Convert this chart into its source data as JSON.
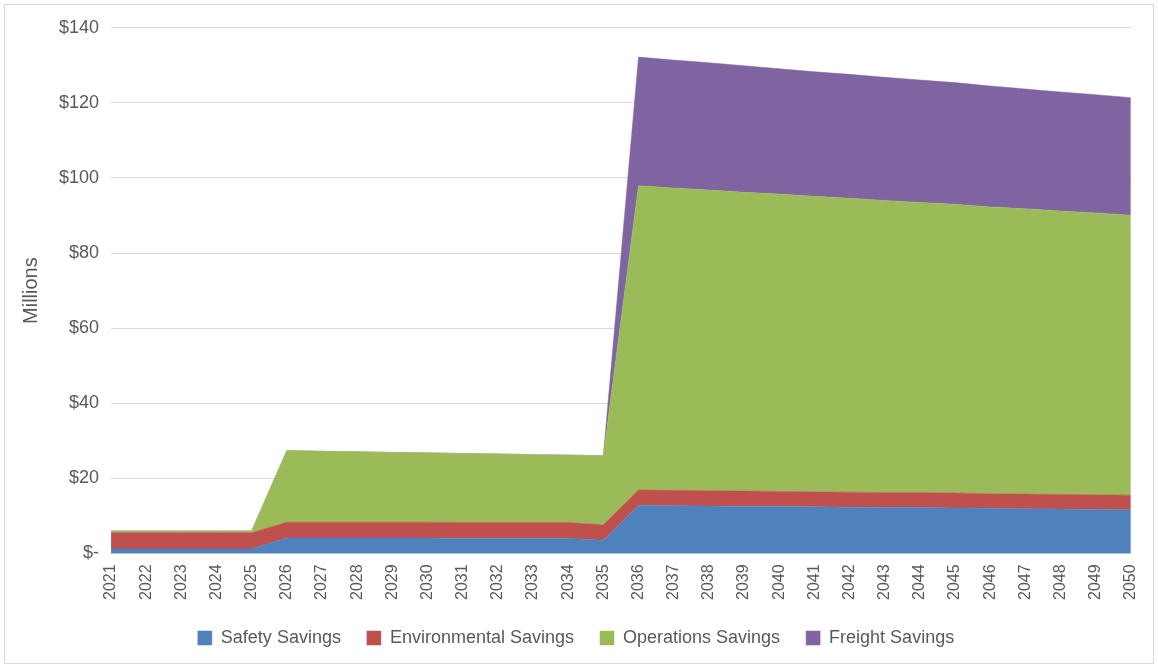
{
  "chart_data": {
    "type": "area",
    "stacked": true,
    "ylabel": "Millions",
    "categories": [
      "2021",
      "2022",
      "2023",
      "2024",
      "2025",
      "2026",
      "2027",
      "2028",
      "2029",
      "2030",
      "2031",
      "2032",
      "2033",
      "2034",
      "2035",
      "2036",
      "2037",
      "2038",
      "2039",
      "2040",
      "2041",
      "2042",
      "2043",
      "2044",
      "2045",
      "2046",
      "2047",
      "2048",
      "2049",
      "2050"
    ],
    "series": [
      {
        "name": "Safety Savings",
        "color": "#4f81bd",
        "values": [
          1.2,
          1.2,
          1.2,
          1.2,
          1.2,
          4.1,
          4.1,
          4.1,
          4.1,
          4.1,
          4.0,
          4.0,
          4.0,
          4.0,
          3.5,
          12.8,
          12.7,
          12.6,
          12.5,
          12.5,
          12.4,
          12.3,
          12.2,
          12.2,
          12.1,
          12.0,
          11.9,
          11.8,
          11.7,
          11.6
        ]
      },
      {
        "name": "Environmental Savings",
        "color": "#c0504d",
        "values": [
          4.3,
          4.3,
          4.3,
          4.3,
          4.3,
          4.2,
          4.2,
          4.2,
          4.2,
          4.2,
          4.2,
          4.2,
          4.2,
          4.2,
          4.1,
          4.1,
          4.1,
          4.1,
          4.1,
          4.0,
          4.0,
          4.0,
          4.0,
          4.0,
          4.0,
          3.9,
          3.9,
          3.9,
          3.9,
          3.9
        ]
      },
      {
        "name": "Operations Savings",
        "color": "#9bbb59",
        "values": [
          0.5,
          0.5,
          0.5,
          0.5,
          0.5,
          19.1,
          18.9,
          18.8,
          18.6,
          18.5,
          18.4,
          18.3,
          18.1,
          18.0,
          18.4,
          81.0,
          80.5,
          80.1,
          79.6,
          79.2,
          78.7,
          78.3,
          77.8,
          77.3,
          76.9,
          76.4,
          76.0,
          75.5,
          75.1,
          74.6
        ]
      },
      {
        "name": "Freight Savings",
        "color": "#8064a2",
        "values": [
          0,
          0,
          0,
          0,
          0,
          0,
          0,
          0,
          0,
          0,
          0,
          0,
          0,
          0,
          0,
          34.3,
          34.1,
          33.9,
          33.7,
          33.4,
          33.2,
          33.0,
          32.8,
          32.6,
          32.4,
          32.2,
          31.9,
          31.7,
          31.5,
          31.3
        ]
      }
    ],
    "ylim": [
      0,
      140
    ],
    "yticks": [
      {
        "value": 0,
        "label": "$-"
      },
      {
        "value": 20,
        "label": "$20"
      },
      {
        "value": 40,
        "label": "$40"
      },
      {
        "value": 60,
        "label": "$60"
      },
      {
        "value": 80,
        "label": "$80"
      },
      {
        "value": 100,
        "label": "$100"
      },
      {
        "value": 120,
        "label": "$120"
      },
      {
        "value": 140,
        "label": "$140"
      }
    ],
    "grid": "y",
    "legend": "bottom"
  }
}
